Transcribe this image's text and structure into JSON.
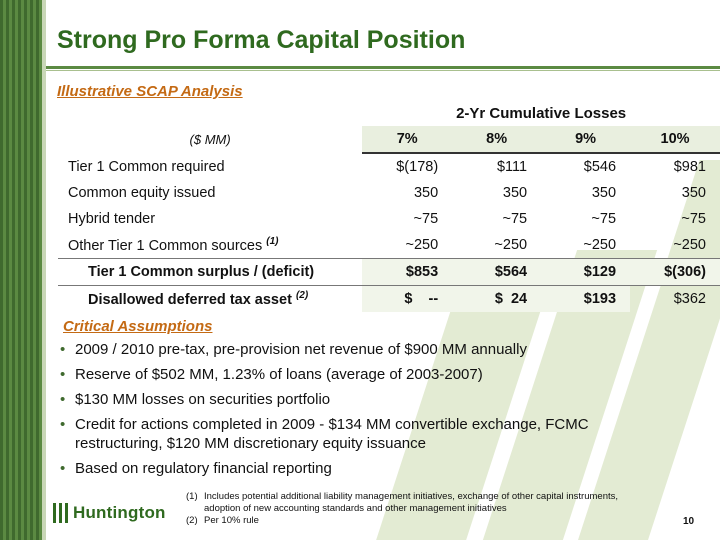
{
  "title": "Strong Pro Forma Capital Position",
  "subtitle": "Illustrative SCAP Analysis",
  "table": {
    "group_header": "2-Yr Cumulative Losses",
    "units_label": "($ MM)",
    "columns": [
      "7%",
      "8%",
      "9%",
      "10%"
    ],
    "rows": [
      {
        "label": "Tier 1 Common required",
        "footnote": "",
        "values": [
          "$(178)",
          "$111",
          "$546",
          "$981"
        ]
      },
      {
        "label": "Common equity issued",
        "footnote": "",
        "values": [
          "350",
          "350",
          "350",
          "350"
        ]
      },
      {
        "label": "Hybrid tender",
        "footnote": "",
        "values": [
          "~75",
          "~75",
          "~75",
          "~75"
        ]
      },
      {
        "label": "Other Tier 1 Common sources",
        "footnote": "(1)",
        "values": [
          "~250",
          "~250",
          "~250",
          "~250"
        ]
      },
      {
        "label": "Tier 1 Common surplus / (deficit)",
        "footnote": "",
        "values": [
          "$853",
          "$564",
          "$129",
          "$(306)"
        ]
      },
      {
        "label": "Disallowed deferred tax asset",
        "footnote": "(2)",
        "values": [
          "$    --",
          "$  24",
          "$193",
          "$362"
        ]
      }
    ]
  },
  "critical": {
    "title": "Critical Assumptions",
    "bullets": [
      "2009 / 2010 pre-tax, pre-provision net revenue of $900 MM annually",
      "Reserve of $502 MM, 1.23% of loans (average of 2003-2007)",
      "$130 MM losses on securities portfolio",
      "Credit for actions completed in 2009 - $134 MM convertible exchange, FCMC restructuring, $120 MM discretionary equity issuance",
      "Based on regulatory financial reporting"
    ]
  },
  "footnotes": [
    {
      "n": "(1)",
      "text": "Includes potential additional liability management initiatives, exchange of other capital instruments, adoption of new accounting standards and other management initiatives"
    },
    {
      "n": "(2)",
      "text": "Per 10% rule"
    }
  ],
  "logo_text": "Huntington",
  "page_number": "10",
  "colors": {
    "brand_green": "#2f6a1f",
    "accent_orange": "#c46a14"
  }
}
